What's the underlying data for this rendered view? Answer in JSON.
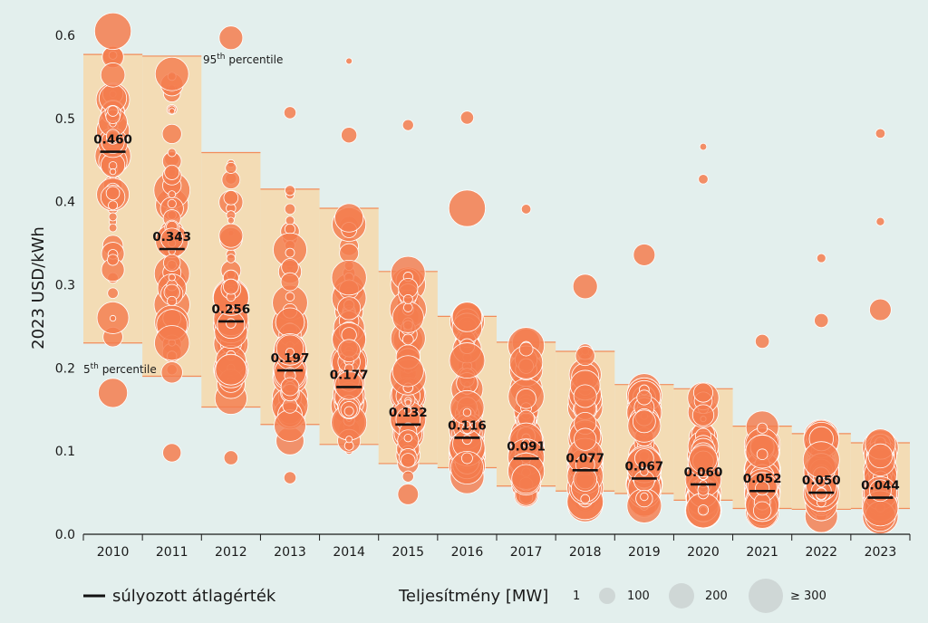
{
  "chart_data": {
    "type": "scatter",
    "ylabel": "2023 USD/kWh",
    "ylim": [
      0,
      0.62
    ],
    "yticks": [
      "0.0",
      "0.1",
      "0.2",
      "0.3",
      "0.4",
      "0.5",
      "0.6"
    ],
    "categories": [
      "2010",
      "2011",
      "2012",
      "2013",
      "2014",
      "2015",
      "2016",
      "2017",
      "2018",
      "2019",
      "2020",
      "2021",
      "2022",
      "2023"
    ],
    "weighted_average": [
      0.46,
      0.343,
      0.256,
      0.197,
      0.177,
      0.132,
      0.116,
      0.091,
      0.077,
      0.067,
      0.06,
      0.052,
      0.05,
      0.044
    ],
    "weighted_average_labels": [
      "0.460",
      "0.343",
      "0.256",
      "0.197",
      "0.177",
      "0.132",
      "0.116",
      "0.091",
      "0.077",
      "0.067",
      "0.060",
      "0.052",
      "0.050",
      "0.044"
    ],
    "percentile_95": [
      0.577,
      0.575,
      0.459,
      0.415,
      0.392,
      0.316,
      0.262,
      0.231,
      0.22,
      0.18,
      0.175,
      0.13,
      0.121,
      0.11
    ],
    "percentile_5": [
      0.23,
      0.19,
      0.153,
      0.132,
      0.108,
      0.085,
      0.08,
      0.058,
      0.052,
      0.049,
      0.041,
      0.031,
      0.03,
      0.031
    ],
    "band_labels": {
      "p95": {
        "base": "95",
        "sup": "th",
        "rest": " percentile"
      },
      "p5": {
        "base": "5",
        "sup": "th",
        "rest": " percentile"
      }
    },
    "outliers": [
      {
        "year": "2010",
        "value": 0.605,
        "mw": 300
      },
      {
        "year": "2010",
        "value": 0.17,
        "mw": 180
      },
      {
        "year": "2011",
        "value": 0.098,
        "mw": 60
      },
      {
        "year": "2012",
        "value": 0.597,
        "mw": 110
      },
      {
        "year": "2012",
        "value": 0.092,
        "mw": 30
      },
      {
        "year": "2013",
        "value": 0.507,
        "mw": 20
      },
      {
        "year": "2013",
        "value": 0.068,
        "mw": 20
      },
      {
        "year": "2014",
        "value": 0.569,
        "mw": 2
      },
      {
        "year": "2014",
        "value": 0.48,
        "mw": 40
      },
      {
        "year": "2015",
        "value": 0.492,
        "mw": 15
      },
      {
        "year": "2015",
        "value": 0.048,
        "mw": 80
      },
      {
        "year": "2016",
        "value": 0.501,
        "mw": 25
      },
      {
        "year": "2016",
        "value": 0.392,
        "mw": 300
      },
      {
        "year": "2017",
        "value": 0.391,
        "mw": 10
      },
      {
        "year": "2018",
        "value": 0.298,
        "mw": 120
      },
      {
        "year": "2019",
        "value": 0.336,
        "mw": 90
      },
      {
        "year": "2020",
        "value": 0.466,
        "mw": 3
      },
      {
        "year": "2020",
        "value": 0.427,
        "mw": 10
      },
      {
        "year": "2021",
        "value": 0.232,
        "mw": 30
      },
      {
        "year": "2022",
        "value": 0.332,
        "mw": 8
      },
      {
        "year": "2022",
        "value": 0.257,
        "mw": 30
      },
      {
        "year": "2023",
        "value": 0.482,
        "mw": 10
      },
      {
        "year": "2023",
        "value": 0.376,
        "mw": 6
      },
      {
        "year": "2023",
        "value": 0.27,
        "mw": 90
      }
    ],
    "colors": {
      "bubble": "#f47c4e",
      "band": "#f3dcb5",
      "band_edge": "#f28c5a",
      "average_line": "#111111",
      "background": "#e3efed",
      "legend_circle": "#cfd7d6"
    }
  },
  "legend": {
    "average_label": "súlyozott átlagérték",
    "capacity_label": "Teljesítmény [MW]",
    "sizes": [
      {
        "label": "1",
        "mw": 1
      },
      {
        "label": "100",
        "mw": 100
      },
      {
        "label": "200",
        "mw": 200
      },
      {
        "label": "≥ 300",
        "mw": 300
      }
    ]
  }
}
